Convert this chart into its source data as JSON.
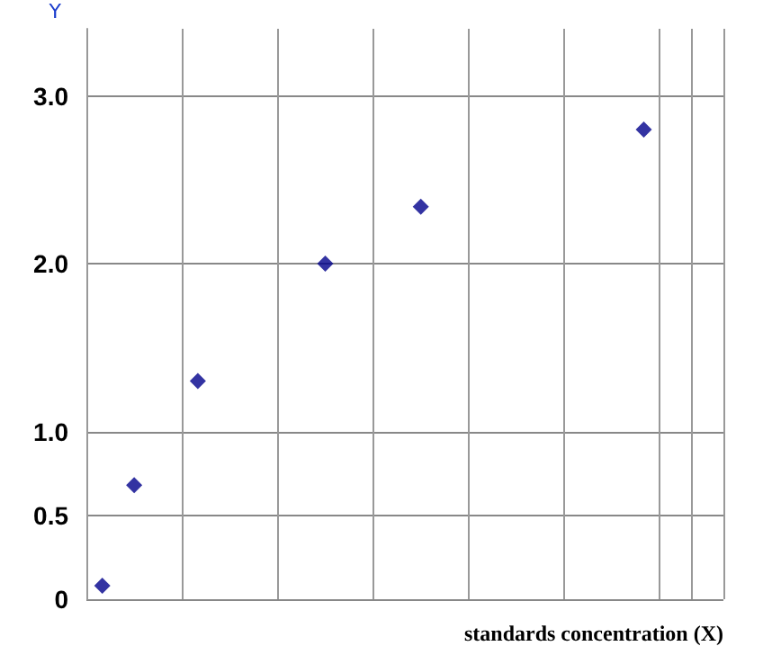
{
  "chart_data": {
    "type": "scatter",
    "xlabel": "standards concentration (X)",
    "ylabel": "Y",
    "categories": [
      null,
      null,
      null,
      null,
      null,
      null,
      null,
      null,
      null,
      null,
      null,
      null,
      null,
      null,
      null,
      null,
      null,
      null,
      null,
      null
    ],
    "series": [
      {
        "color": "#00008b",
        "values": [
          0.08,
          0.68,
          null,
          1.3,
          null,
          null,
          null,
          2.0,
          null,
          null,
          2.34,
          null,
          null,
          null,
          null,
          null,
          null,
          2.8,
          null,
          null
        ]
      }
    ],
    "ylim": [
      0,
      3.4
    ],
    "yticks": [
      0,
      0.5,
      {
        "value": 1,
        "label": "1.0"
      },
      {
        "value": 2,
        "label": "2.0"
      },
      {
        "value": 3,
        "label": "3.0"
      }
    ],
    "tick_labels": "y",
    "grid": true,
    "marker": "diamond"
  }
}
